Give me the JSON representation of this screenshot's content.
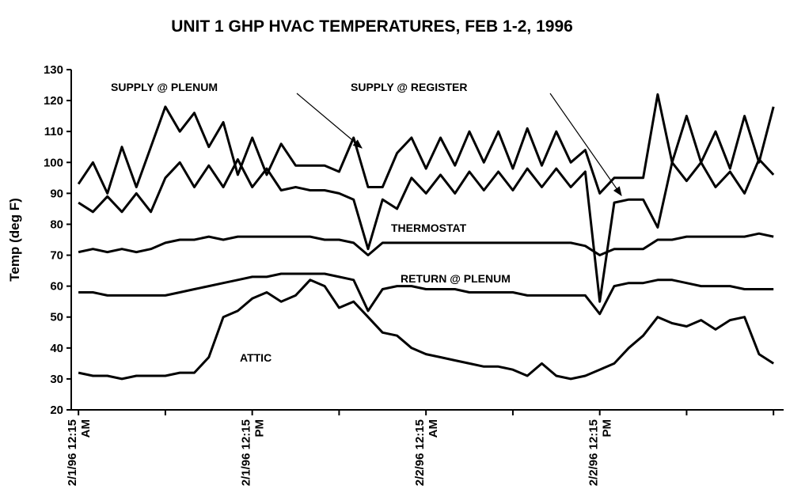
{
  "chart_data": {
    "type": "line",
    "title": "UNIT 1 GHP HVAC TEMPERATURES, FEB 1-2, 1996",
    "y_label": "Temp (deg F)",
    "x": [
      0,
      1,
      2,
      3,
      4,
      5,
      6,
      7,
      8,
      9,
      10,
      11,
      12,
      13,
      14,
      15,
      16,
      17,
      18,
      19,
      20,
      21,
      22,
      23,
      24,
      25,
      26,
      27,
      28,
      29,
      30,
      31,
      32,
      33,
      34,
      35,
      36,
      37,
      38,
      39,
      40,
      41,
      42,
      43,
      44,
      45,
      46,
      47,
      48
    ],
    "xlim": [
      -0.5,
      48.7
    ],
    "xticks": [
      {
        "value": 0,
        "label": "2/1/96 12:15 AM"
      },
      {
        "value": 12,
        "label": "2/1/96 12:15 PM"
      },
      {
        "value": 24,
        "label": "2/2/96 12:15 AM"
      },
      {
        "value": 36,
        "label": "2/2/96 12:15 PM"
      }
    ],
    "xminorticks": [
      6,
      18,
      30,
      42,
      48
    ],
    "ylim": [
      20,
      130
    ],
    "yticks": [
      20,
      30,
      40,
      50,
      60,
      70,
      80,
      90,
      100,
      110,
      120,
      130
    ],
    "series": [
      {
        "name": "SUPPLY @ PLENUM",
        "color": "#000000",
        "values": [
          93,
          100,
          90,
          105,
          92,
          105,
          118,
          110,
          116,
          105,
          113,
          96,
          108,
          96,
          106,
          99,
          99,
          99,
          97,
          108,
          92,
          92,
          103,
          108,
          98,
          108,
          99,
          110,
          100,
          110,
          98,
          111,
          99,
          110,
          100,
          104,
          90,
          95,
          95,
          95,
          122,
          100,
          115,
          100,
          110,
          98,
          115,
          100,
          118
        ]
      },
      {
        "name": "SUPPLY @ REGISTER",
        "color": "#000000",
        "values": [
          87,
          84,
          89,
          84,
          90,
          84,
          95,
          100,
          92,
          99,
          92,
          101,
          92,
          98,
          91,
          92,
          91,
          91,
          90,
          88,
          72,
          88,
          85,
          95,
          90,
          96,
          90,
          97,
          91,
          97,
          91,
          98,
          92,
          98,
          92,
          97,
          55,
          87,
          88,
          88,
          79,
          100,
          94,
          100,
          92,
          97,
          90,
          101,
          96
        ]
      },
      {
        "name": "THERMOSTAT",
        "color": "#000000",
        "values": [
          71,
          72,
          71,
          72,
          71,
          72,
          74,
          75,
          75,
          76,
          75,
          76,
          76,
          76,
          76,
          76,
          76,
          75,
          75,
          74,
          70,
          74,
          74,
          74,
          74,
          74,
          74,
          74,
          74,
          74,
          74,
          74,
          74,
          74,
          74,
          73,
          70,
          72,
          72,
          72,
          75,
          75,
          76,
          76,
          76,
          76,
          76,
          77,
          76
        ]
      },
      {
        "name": "RETURN @ PLENUM",
        "color": "#000000",
        "values": [
          58,
          58,
          57,
          57,
          57,
          57,
          57,
          58,
          59,
          60,
          61,
          62,
          63,
          63,
          64,
          64,
          64,
          64,
          63,
          62,
          52,
          59,
          60,
          60,
          59,
          59,
          59,
          58,
          58,
          58,
          58,
          57,
          57,
          57,
          57,
          57,
          51,
          60,
          61,
          61,
          62,
          62,
          61,
          60,
          60,
          60,
          59,
          59,
          59
        ]
      },
      {
        "name": "ATTIC",
        "color": "#000000",
        "values": [
          32,
          31,
          31,
          30,
          31,
          31,
          31,
          32,
          32,
          37,
          50,
          52,
          56,
          58,
          55,
          57,
          62,
          60,
          53,
          55,
          50,
          45,
          44,
          40,
          38,
          37,
          36,
          35,
          34,
          34,
          33,
          31,
          35,
          31,
          30,
          31,
          33,
          35,
          40,
          44,
          50,
          48,
          47,
          49,
          46,
          49,
          50,
          38,
          35
        ]
      }
    ]
  }
}
